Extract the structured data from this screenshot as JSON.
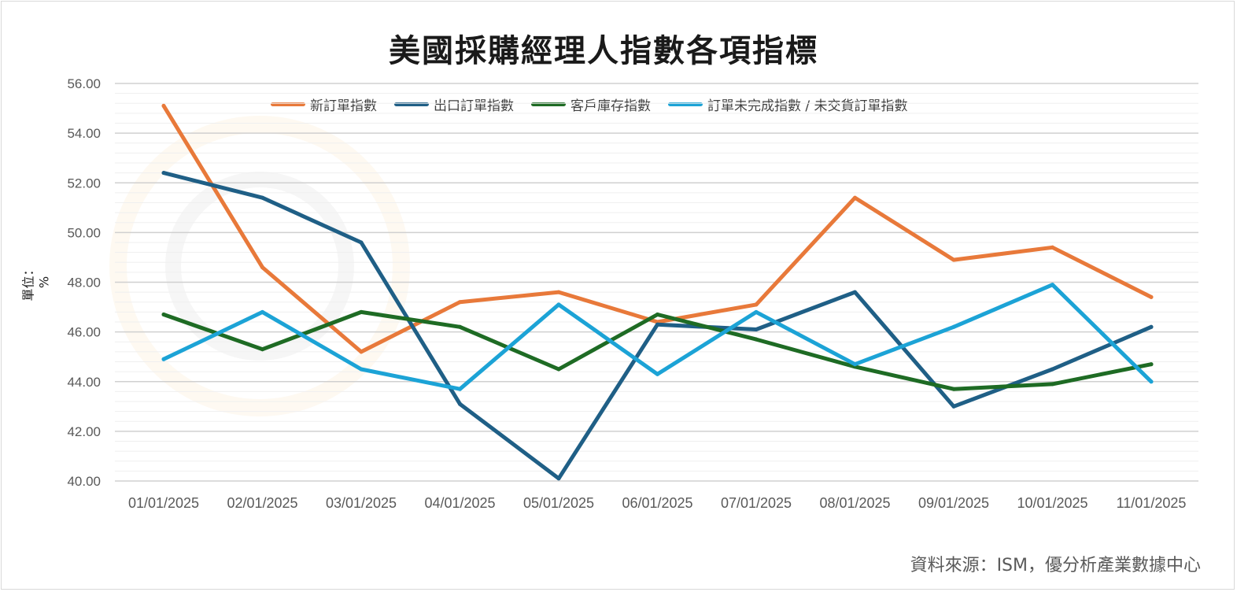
{
  "title": "美國採購經理人指數各項指標",
  "source": "資料來源：ISM，優分析產業數據中心",
  "colors": {
    "new_orders": "#E8793A",
    "export_orders": "#1F5F86",
    "customer_inventory": "#1E6B24",
    "backlog": "#1CA3D6"
  },
  "chart_data": {
    "type": "line",
    "ylabel": "單位：%",
    "ylim": [
      40,
      56
    ],
    "yticks": [
      "40.00",
      "42.00",
      "44.00",
      "46.00",
      "48.00",
      "50.00",
      "52.00",
      "54.00",
      "56.00"
    ],
    "legend_position": "top",
    "grid": true,
    "categories": [
      "01/01/2025",
      "02/01/2025",
      "03/01/2025",
      "04/01/2025",
      "05/01/2025",
      "06/01/2025",
      "07/01/2025",
      "08/01/2025",
      "09/01/2025",
      "10/01/2025",
      "11/01/2025"
    ],
    "series": [
      {
        "name": "新訂單指數",
        "color_key": "new_orders",
        "values": [
          55.1,
          48.6,
          45.2,
          47.2,
          47.6,
          46.4,
          47.1,
          51.4,
          48.9,
          49.4,
          47.4
        ]
      },
      {
        "name": "出口訂單指數",
        "color_key": "export_orders",
        "values": [
          52.4,
          51.4,
          49.6,
          43.1,
          40.1,
          46.3,
          46.1,
          47.6,
          43.0,
          44.5,
          46.2
        ]
      },
      {
        "name": "客戶庫存指數",
        "color_key": "customer_inventory",
        "values": [
          46.7,
          45.3,
          46.8,
          46.2,
          44.5,
          46.7,
          45.7,
          44.6,
          43.7,
          43.9,
          44.7
        ]
      },
      {
        "name": "訂單未完成指數 / 未交貨訂單指數",
        "color_key": "backlog",
        "values": [
          44.9,
          46.8,
          44.5,
          43.7,
          47.1,
          44.3,
          46.8,
          44.7,
          46.2,
          47.9,
          44.0
        ]
      }
    ]
  }
}
